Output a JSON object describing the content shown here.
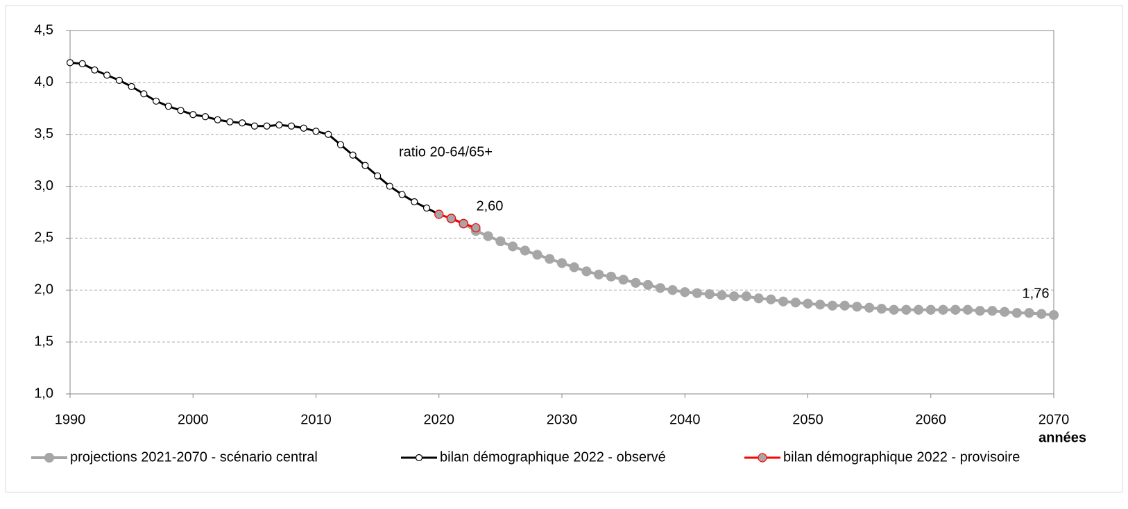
{
  "chart_data": {
    "type": "line",
    "annotations": [
      "ratio 20-64/65+"
    ],
    "x_label": "années",
    "xlim": [
      1990,
      2070
    ],
    "xticks": [
      1990,
      2000,
      2010,
      2020,
      2030,
      2040,
      2050,
      2060,
      2070
    ],
    "ylim": [
      1.0,
      4.5
    ],
    "yticks": [
      {
        "value": 1.0,
        "label": "1,0"
      },
      {
        "value": 1.5,
        "label": "1,5"
      },
      {
        "value": 2.0,
        "label": "2,0"
      },
      {
        "value": 2.5,
        "label": "2,5"
      },
      {
        "value": 3.0,
        "label": "3,0"
      },
      {
        "value": 3.5,
        "label": "3,5"
      },
      {
        "value": 4.0,
        "label": "4,0"
      },
      {
        "value": 4.5,
        "label": "4,5"
      }
    ],
    "grid": true,
    "legend": "bottom",
    "series": [
      {
        "name": "projections 2021-2070 - scénario central",
        "color": "#a6a6a6",
        "x": [
          2021,
          2022,
          2023,
          2024,
          2025,
          2026,
          2027,
          2028,
          2029,
          2030,
          2031,
          2032,
          2033,
          2034,
          2035,
          2036,
          2037,
          2038,
          2039,
          2040,
          2041,
          2042,
          2043,
          2044,
          2045,
          2046,
          2047,
          2048,
          2049,
          2050,
          2051,
          2052,
          2053,
          2054,
          2055,
          2056,
          2057,
          2058,
          2059,
          2060,
          2061,
          2062,
          2063,
          2064,
          2065,
          2066,
          2067,
          2068,
          2069,
          2070
        ],
        "values": [
          2.69,
          2.64,
          2.57,
          2.52,
          2.47,
          2.42,
          2.38,
          2.34,
          2.3,
          2.26,
          2.22,
          2.18,
          2.15,
          2.13,
          2.1,
          2.07,
          2.05,
          2.02,
          2.0,
          1.98,
          1.97,
          1.96,
          1.95,
          1.94,
          1.94,
          1.92,
          1.91,
          1.89,
          1.88,
          1.87,
          1.86,
          1.85,
          1.85,
          1.84,
          1.83,
          1.82,
          1.81,
          1.81,
          1.81,
          1.81,
          1.81,
          1.81,
          1.81,
          1.8,
          1.8,
          1.79,
          1.78,
          1.78,
          1.77,
          1.76
        ],
        "value_labels": [
          null,
          null,
          null,
          null,
          null,
          null,
          null,
          null,
          null,
          null,
          null,
          null,
          null,
          null,
          null,
          null,
          null,
          null,
          null,
          null,
          null,
          null,
          null,
          null,
          null,
          null,
          null,
          null,
          null,
          null,
          null,
          null,
          null,
          null,
          null,
          null,
          null,
          null,
          null,
          null,
          null,
          null,
          null,
          null,
          null,
          null,
          null,
          null,
          null,
          "1,76"
        ]
      },
      {
        "name": "bilan démographique 2022 - observé",
        "color": "#000000",
        "x": [
          1990,
          1991,
          1992,
          1993,
          1994,
          1995,
          1996,
          1997,
          1998,
          1999,
          2000,
          2001,
          2002,
          2003,
          2004,
          2005,
          2006,
          2007,
          2008,
          2009,
          2010,
          2011,
          2012,
          2013,
          2014,
          2015,
          2016,
          2017,
          2018,
          2019
        ],
        "values": [
          4.19,
          4.18,
          4.12,
          4.07,
          4.02,
          3.96,
          3.89,
          3.82,
          3.77,
          3.73,
          3.69,
          3.67,
          3.64,
          3.62,
          3.61,
          3.58,
          3.58,
          3.59,
          3.58,
          3.56,
          3.53,
          3.5,
          3.4,
          3.3,
          3.2,
          3.1,
          3.0,
          2.92,
          2.85,
          2.79
        ]
      },
      {
        "name": "bilan démographique 2022 - provisoire",
        "color": "#ff0000",
        "x": [
          2020,
          2021,
          2022,
          2023
        ],
        "values": [
          2.73,
          2.69,
          2.64,
          2.6
        ],
        "value_labels": [
          null,
          null,
          null,
          "2,60"
        ]
      }
    ]
  }
}
